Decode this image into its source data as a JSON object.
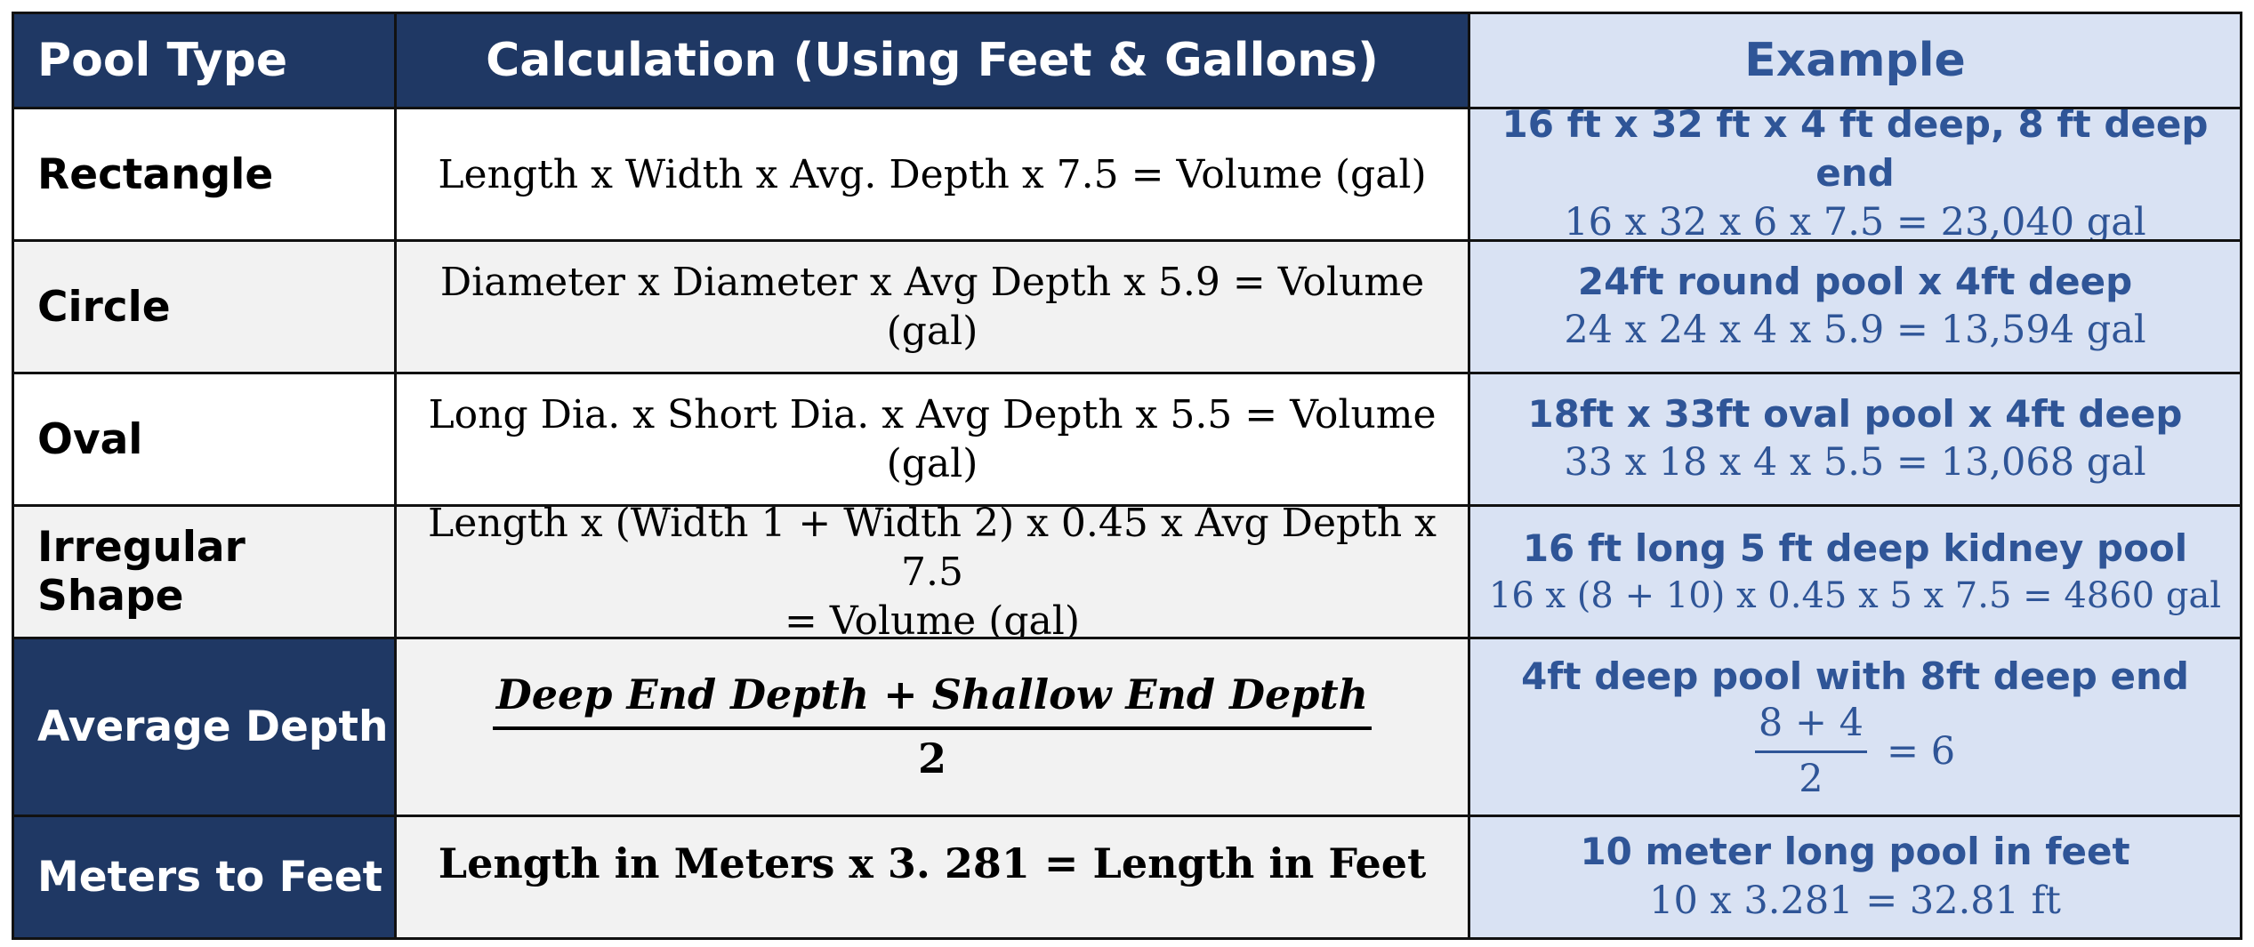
{
  "header": {
    "col1": "Pool Type",
    "col2": "Calculation (Using Feet & Gallons)",
    "col3": "Example"
  },
  "rows": [
    {
      "type": "Rectangle",
      "calc": "Length x Width x Avg. Depth x 7.5 = Volume (gal)",
      "example_title": "16 ft x 32 ft x 4 ft deep, 8 ft deep end",
      "example_calc": "16 x 32 x 6 x 7.5 = 23,040 gal"
    },
    {
      "type": "Circle",
      "calc": "Diameter x Diameter x Avg Depth x 5.9 = Volume (gal)",
      "example_title": "24ft round pool x 4ft deep",
      "example_calc": "24 x 24 x 4 x 5.9 = 13,594 gal"
    },
    {
      "type": "Oval",
      "calc": "Long Dia. x Short Dia. x Avg Depth x 5.5 = Volume (gal)",
      "example_title": "18ft x 33ft oval pool x 4ft deep",
      "example_calc": "33 x 18 x 4 x 5.5 = 13,068 gal"
    },
    {
      "type": "Irregular Shape",
      "calc_line1": "Length x (Width 1 +  Width 2) x 0.45 x Avg Depth x 7.5",
      "calc_line2": "= Volume (gal)",
      "example_title": "16 ft long 5 ft deep kidney pool",
      "example_calc": "16 x (8 + 10) x 0.45 x 5 x 7.5 = 4860 gal"
    },
    {
      "type": "Average Depth",
      "calc_numerator": "Deep End Depth + Shallow End Depth",
      "calc_denominator": "2",
      "example_title": "4ft deep pool with 8ft deep end",
      "example_numerator": "8 + 4",
      "example_denominator": "2",
      "example_result": "= 6"
    },
    {
      "type": "Meters to Feet",
      "calc": "Length in Meters x 3. 281 = Length in Feet",
      "example_title": "10 meter long pool in feet",
      "example_calc": "10 x 3.281 = 32.81 ft"
    }
  ],
  "colors": {
    "header_bg": "#1f3864",
    "example_bg": "#d9e2f3",
    "example_text": "#2f5597",
    "alt_row_bg": "#f2f2f2"
  }
}
